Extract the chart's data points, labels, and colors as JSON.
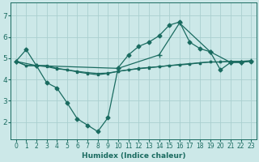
{
  "xlabel": "Humidex (Indice chaleur)",
  "bg_color": "#cce8e8",
  "grid_color": "#aacfcf",
  "line_color": "#1a6b60",
  "xlim": [
    -0.5,
    23.5
  ],
  "ylim": [
    1.2,
    7.6
  ],
  "yticks": [
    2,
    3,
    4,
    5,
    6,
    7
  ],
  "xticks": [
    0,
    1,
    2,
    3,
    4,
    5,
    6,
    7,
    8,
    9,
    10,
    11,
    12,
    13,
    14,
    15,
    16,
    17,
    18,
    19,
    20,
    21,
    22,
    23
  ],
  "lines": [
    {
      "x": [
        0,
        1,
        2,
        3,
        4,
        5,
        6,
        7,
        8,
        9,
        10,
        11,
        12,
        13,
        14,
        15,
        16,
        17,
        18,
        19,
        20,
        21,
        22,
        23
      ],
      "y": [
        4.85,
        5.4,
        4.65,
        3.85,
        3.6,
        2.9,
        2.15,
        1.85,
        1.55,
        2.2,
        4.55,
        5.15,
        5.55,
        5.75,
        6.05,
        6.55,
        6.7,
        5.75,
        5.45,
        5.3,
        4.45,
        4.8,
        4.8,
        4.85
      ],
      "marker": "D",
      "markersize": 2.5,
      "lw": 0.9
    },
    {
      "x": [
        0,
        1,
        2,
        3,
        4,
        5,
        6,
        7,
        8,
        9,
        10,
        11,
        12,
        13,
        14,
        15,
        16,
        17,
        18,
        19,
        20,
        21,
        22,
        23
      ],
      "y": [
        4.85,
        4.65,
        4.65,
        4.6,
        4.5,
        4.45,
        4.38,
        4.32,
        4.28,
        4.3,
        4.38,
        4.45,
        4.5,
        4.55,
        4.6,
        4.65,
        4.68,
        4.72,
        4.78,
        4.82,
        4.82,
        4.85,
        4.85,
        4.87
      ],
      "marker": "s",
      "markersize": 1.8,
      "lw": 0.9
    },
    {
      "x": [
        0,
        1,
        2,
        3,
        4,
        5,
        6,
        7,
        8,
        9,
        10,
        11,
        12,
        13,
        14,
        15,
        16,
        17,
        18,
        19,
        20,
        21,
        22,
        23
      ],
      "y": [
        4.85,
        4.65,
        4.65,
        4.65,
        4.52,
        4.45,
        4.35,
        4.28,
        4.22,
        4.28,
        4.38,
        4.45,
        4.52,
        4.56,
        4.6,
        4.65,
        4.7,
        4.74,
        4.78,
        4.82,
        4.82,
        4.85,
        4.85,
        4.87
      ],
      "marker": "s",
      "markersize": 1.8,
      "lw": 0.9
    },
    {
      "x": [
        0,
        2,
        10,
        14,
        16,
        19,
        21,
        22,
        23
      ],
      "y": [
        4.85,
        4.65,
        4.52,
        5.15,
        6.65,
        5.3,
        4.8,
        4.8,
        4.87
      ],
      "marker": "+",
      "markersize": 4.5,
      "lw": 0.9
    }
  ]
}
